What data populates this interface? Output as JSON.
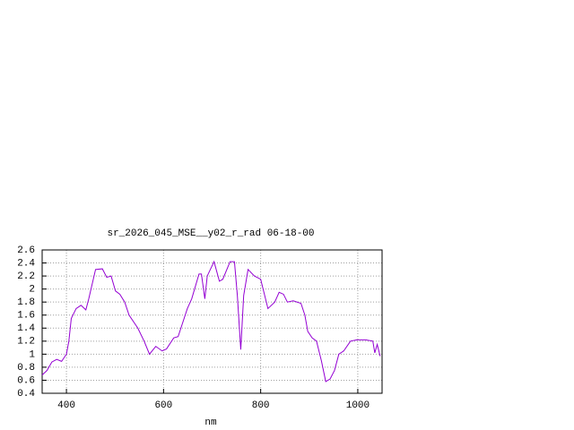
{
  "chart_data": {
    "type": "line",
    "title": "sr_2026_045_MSE__y02_r_rad 06-18-00",
    "x_label": "nm",
    "x": [
      350,
      360,
      370,
      380,
      390,
      400,
      405,
      410,
      420,
      430,
      440,
      446,
      460,
      474,
      483,
      492,
      501,
      510,
      520,
      529,
      547,
      560,
      571,
      584,
      597,
      606,
      621,
      630,
      649,
      658,
      673,
      678,
      685,
      690,
      704,
      715,
      722,
      737,
      746,
      752,
      759,
      765,
      774,
      787,
      800,
      815,
      829,
      838,
      847,
      855,
      867,
      883,
      891,
      897,
      906,
      915,
      925,
      934,
      943,
      952,
      961,
      971,
      985,
      998,
      1016,
      1031,
      1035,
      1040,
      1046
    ],
    "series": [
      {
        "name": "sr_2026_045_MSE__y02_r_rad",
        "color": "#9400d3",
        "values": [
          0.68,
          0.75,
          0.88,
          0.92,
          0.89,
          1.0,
          1.2,
          1.55,
          1.7,
          1.75,
          1.68,
          1.85,
          2.3,
          2.31,
          2.18,
          2.2,
          1.97,
          1.92,
          1.8,
          1.6,
          1.4,
          1.2,
          1.0,
          1.12,
          1.05,
          1.08,
          1.25,
          1.27,
          1.7,
          1.85,
          2.23,
          2.23,
          1.85,
          2.2,
          2.42,
          2.12,
          2.15,
          2.42,
          2.42,
          1.9,
          1.07,
          1.9,
          2.3,
          2.2,
          2.15,
          1.7,
          1.8,
          1.95,
          1.92,
          1.8,
          1.82,
          1.78,
          1.6,
          1.35,
          1.25,
          1.2,
          0.9,
          0.58,
          0.62,
          0.75,
          1.0,
          1.05,
          1.2,
          1.22,
          1.22,
          1.2,
          1.02,
          1.15,
          0.97
        ]
      }
    ],
    "xlim": [
      350,
      1050
    ],
    "xticks": [
      400,
      600,
      800,
      1000
    ],
    "ylim": [
      0.4,
      2.6
    ],
    "yticks": [
      0.4,
      0.6,
      0.8,
      1,
      1.2,
      1.4,
      1.6,
      1.8,
      2,
      2.2,
      2.4,
      2.6
    ],
    "grid": true
  }
}
